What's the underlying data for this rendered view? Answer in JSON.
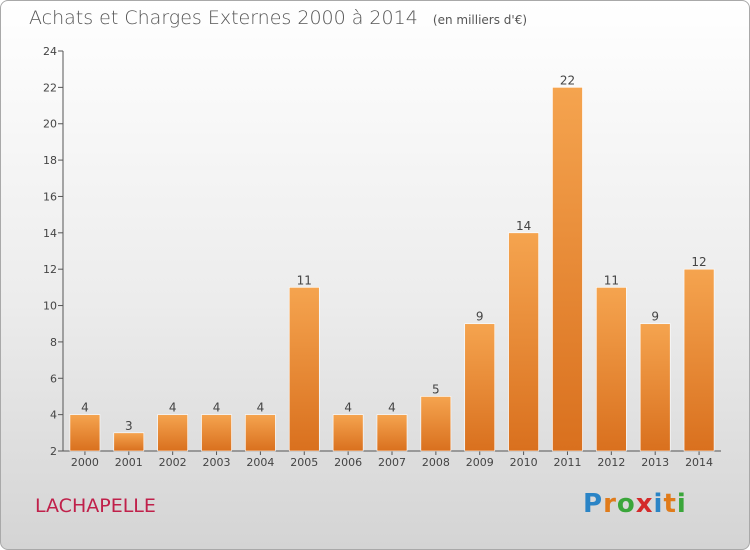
{
  "title": "Achats et Charges Externes 2000 à 2014",
  "unit_note": "(en milliers d'€)",
  "place_label": "LACHAPELLE",
  "logo": {
    "text": "Proxiti",
    "letter_colors": [
      "#2a84c6",
      "#e07b1a",
      "#3aa63a",
      "#d42a2a",
      "#2a84c6",
      "#e07b1a",
      "#3aa63a"
    ]
  },
  "colors": {
    "bar_light": "#f5a44f",
    "bar_dark": "#d9701e",
    "axis": "#555555",
    "grid": "#cccccc",
    "place": "#c0204a"
  },
  "chart_data": {
    "type": "bar",
    "title": "Achats et Charges Externes 2000 à 2014",
    "xlabel": "",
    "ylabel": "",
    "categories": [
      "2000",
      "2001",
      "2002",
      "2003",
      "2004",
      "2005",
      "2006",
      "2007",
      "2008",
      "2009",
      "2010",
      "2011",
      "2012",
      "2013",
      "2014"
    ],
    "values": [
      4,
      3,
      4,
      4,
      4,
      11,
      4,
      4,
      5,
      9,
      14,
      22,
      11,
      9,
      12
    ],
    "ylim": [
      2,
      24
    ],
    "yticks": [
      2,
      4,
      6,
      8,
      10,
      12,
      14,
      16,
      18,
      20,
      22,
      24
    ],
    "grid": false,
    "legend": "none"
  }
}
